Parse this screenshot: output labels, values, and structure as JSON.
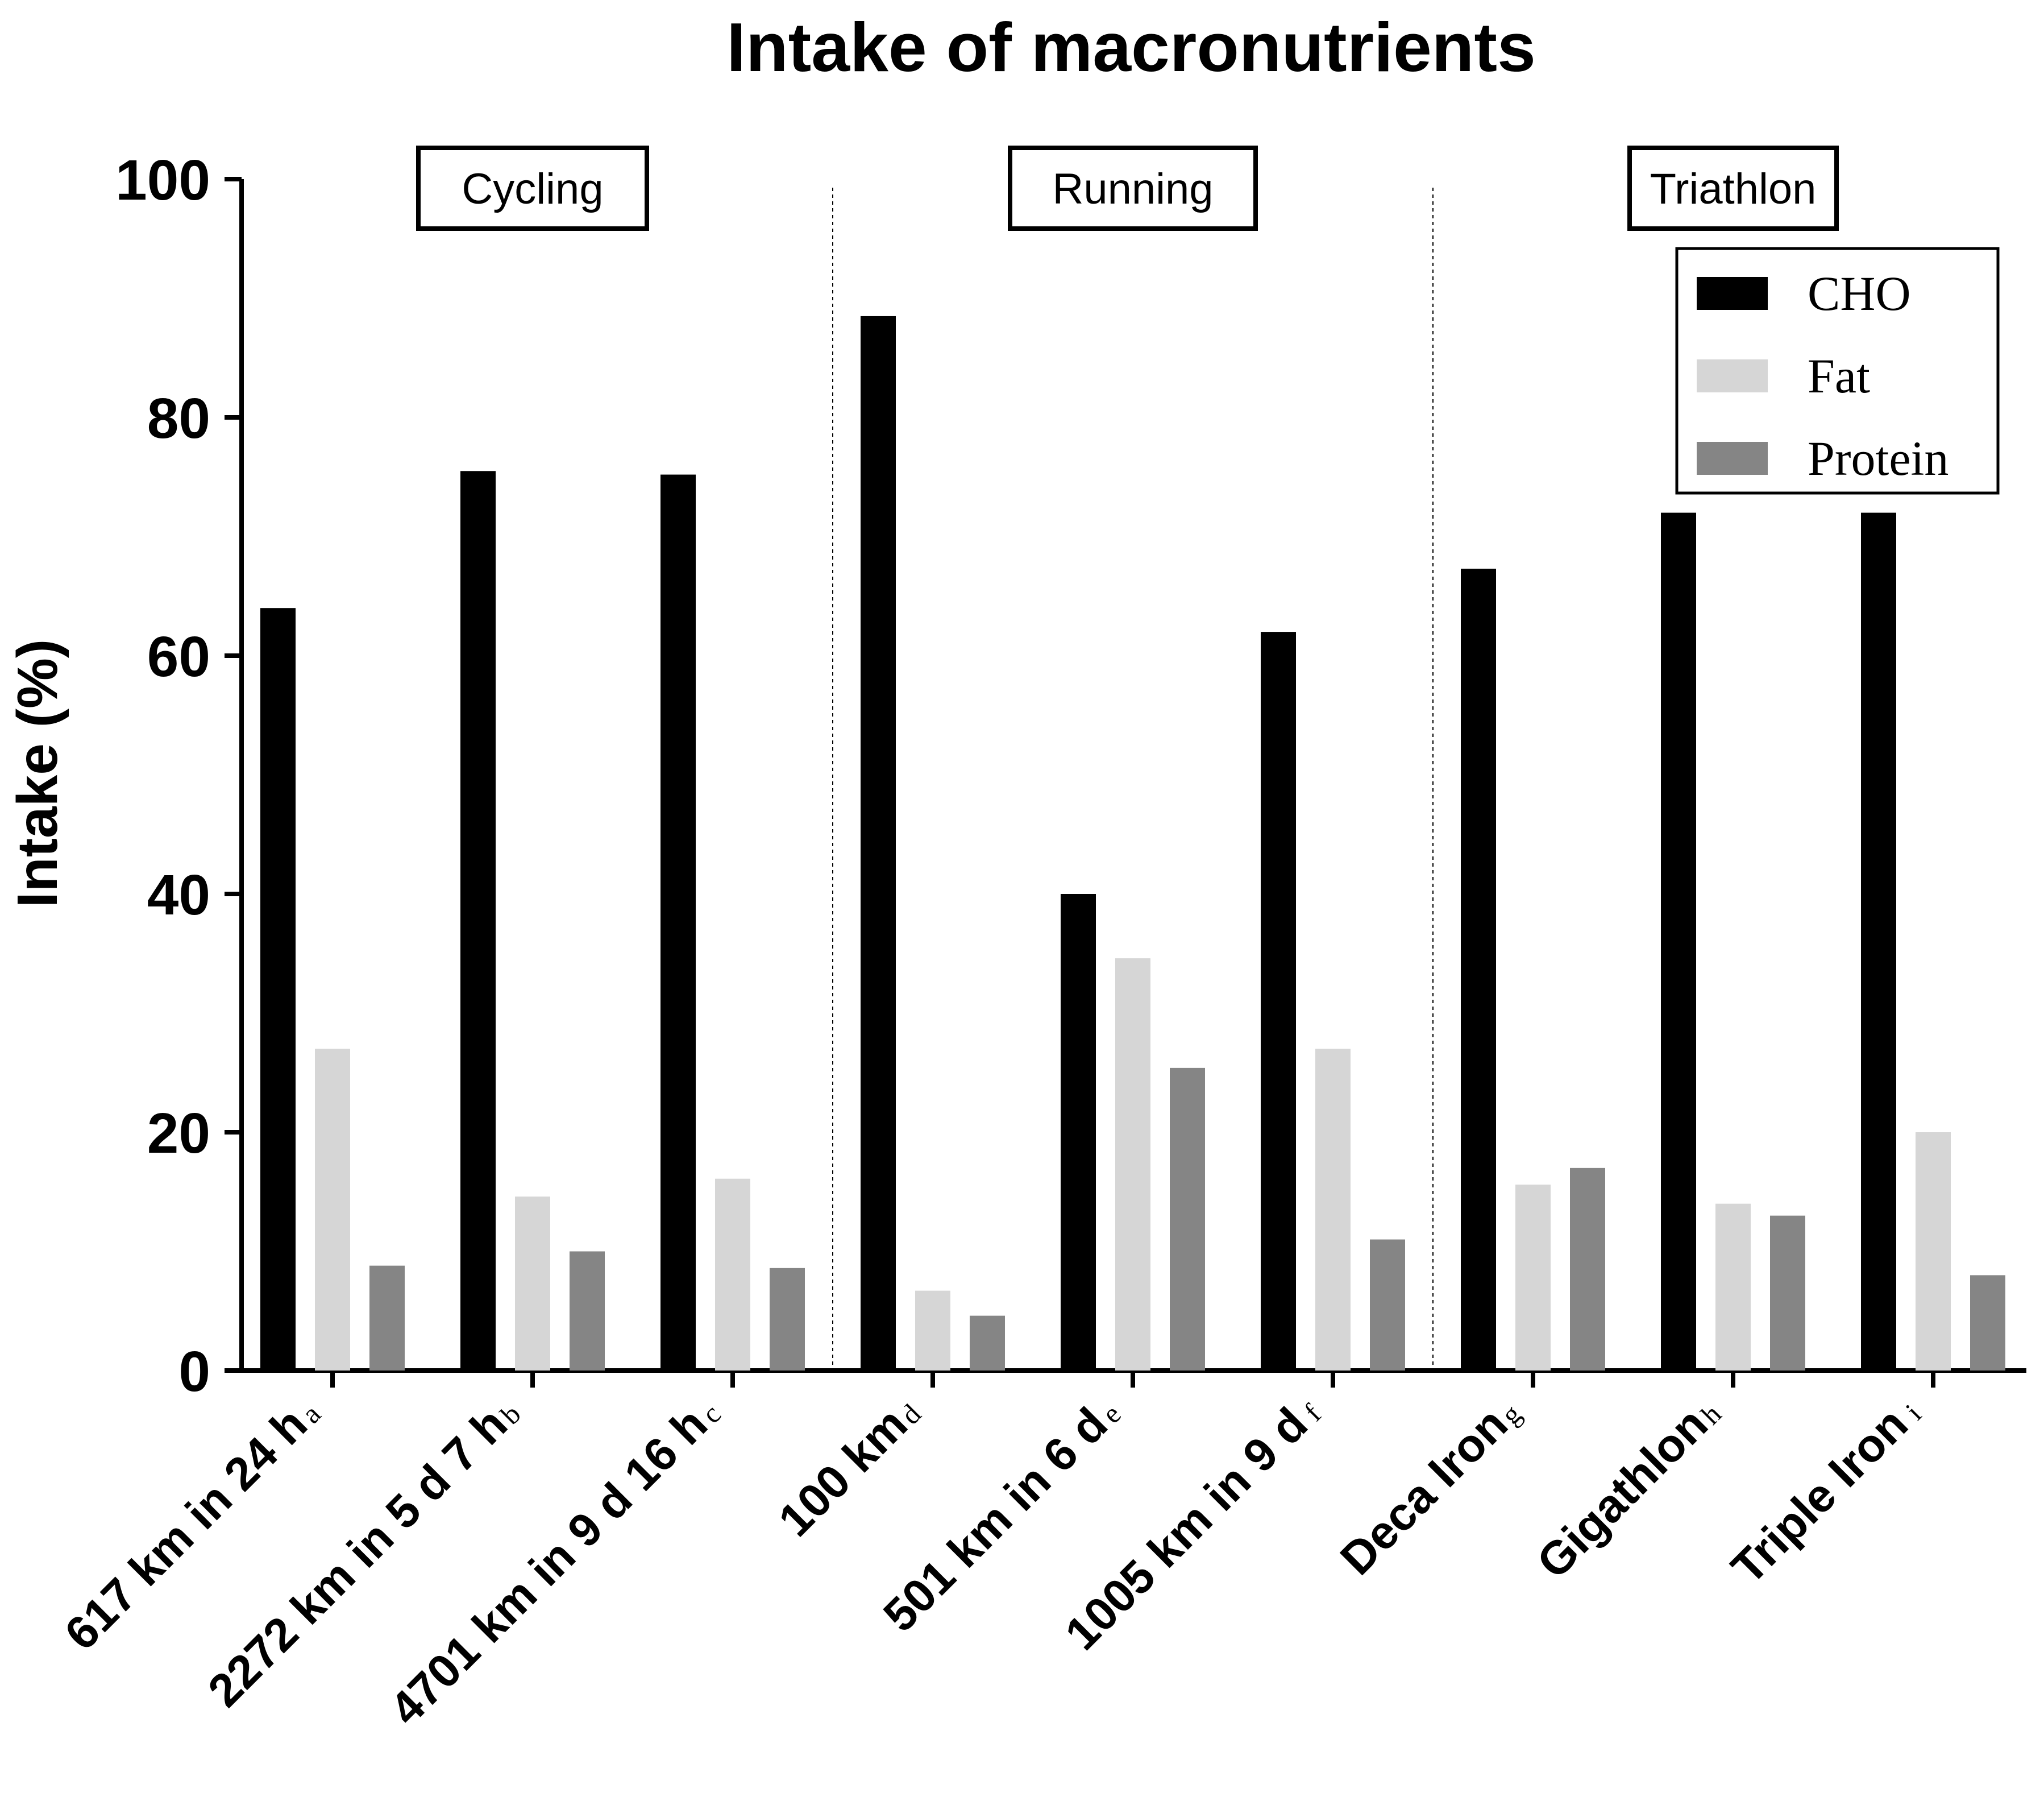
{
  "chart_data": {
    "type": "bar",
    "title": "Intake of macronutrients",
    "xlabel": "",
    "ylabel": "Intake (%)",
    "ylim": [
      0,
      100
    ],
    "yticks": [
      0,
      20,
      40,
      60,
      80,
      100
    ],
    "grid": false,
    "legend_position": "top-right",
    "categories": [
      {
        "label": "617 km in 24 h",
        "sup": "a"
      },
      {
        "label": "2272 km in 5 d 7 h",
        "sup": "b"
      },
      {
        "label": "4701 km in 9 d 16 h",
        "sup": "c"
      },
      {
        "label": "100 km",
        "sup": "d"
      },
      {
        "label": "501 km in 6 d",
        "sup": "e"
      },
      {
        "label": "1005 km in 9 d",
        "sup": "f"
      },
      {
        "label": "Deca Iron",
        "sup": "g"
      },
      {
        "label": "Gigathlon",
        "sup": "h"
      },
      {
        "label": "Triple Iron",
        "sup": "i"
      }
    ],
    "groups": [
      {
        "name": "Cycling",
        "start": 0,
        "end": 2
      },
      {
        "name": "Running",
        "start": 3,
        "end": 5
      },
      {
        "name": "Triathlon",
        "start": 6,
        "end": 8
      }
    ],
    "series": [
      {
        "name": "CHO",
        "color": "#000000",
        "values": [
          64,
          75.5,
          75.2,
          88.5,
          40,
          62,
          67.3,
          72,
          72
        ]
      },
      {
        "name": "Fat",
        "color": "#d6d6d6",
        "values": [
          27,
          14.6,
          16.1,
          6.7,
          34.6,
          27,
          15.6,
          14,
          20
        ]
      },
      {
        "name": "Protein",
        "color": "#858585",
        "values": [
          8.8,
          10,
          8.6,
          4.6,
          25.4,
          11,
          17,
          13,
          8
        ]
      }
    ]
  }
}
